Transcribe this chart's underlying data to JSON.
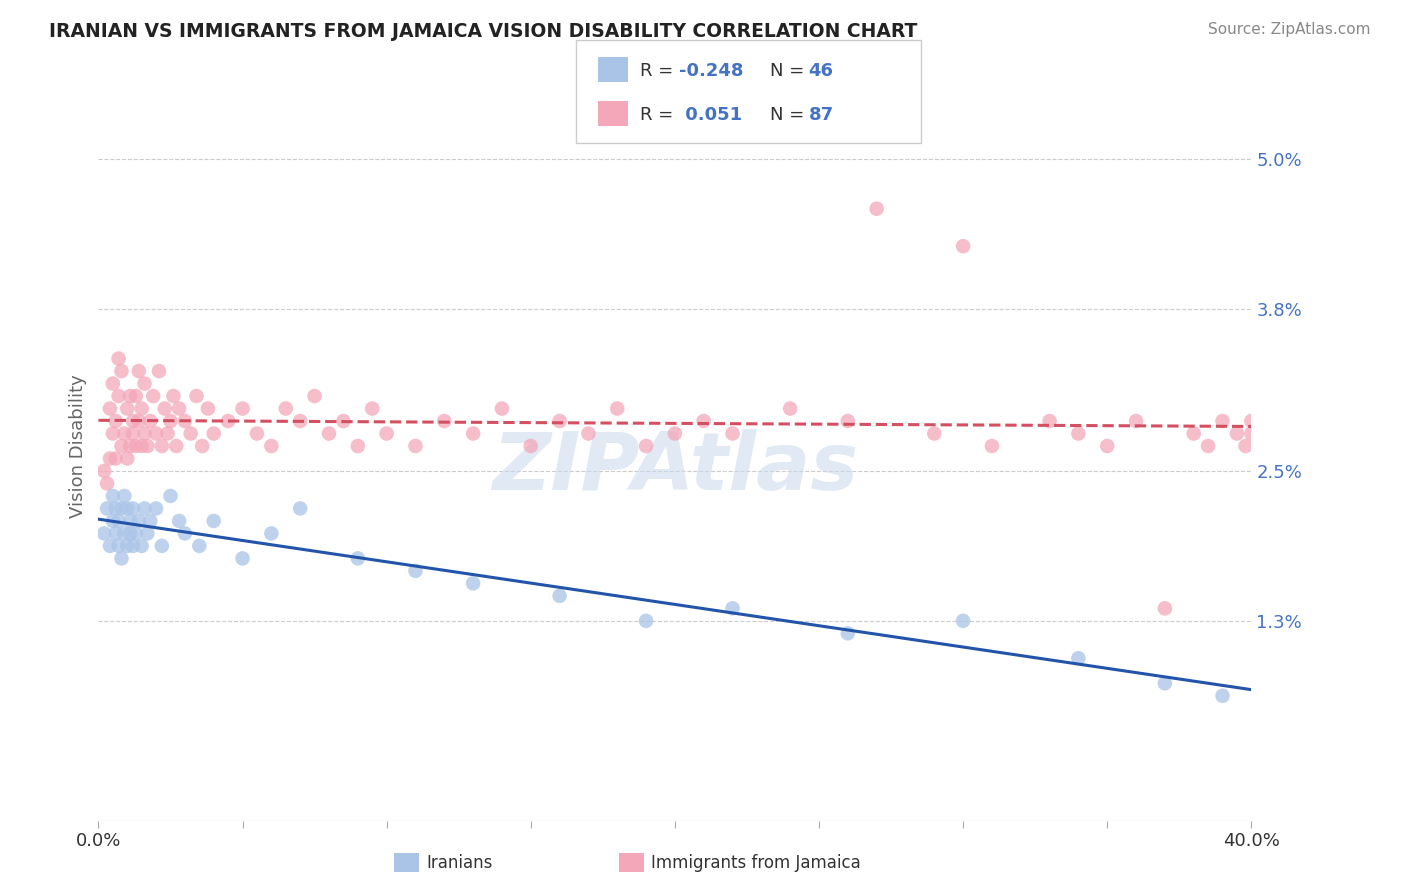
{
  "title": "IRANIAN VS IMMIGRANTS FROM JAMAICA VISION DISABILITY CORRELATION CHART",
  "source": "Source: ZipAtlas.com",
  "ylabel": "Vision Disability",
  "color_iranian": "#aac4e8",
  "color_jamaica": "#f4a7b9",
  "color_trendline_iranian": "#2255aa",
  "color_trendline_jamaica": "#d45060",
  "watermark": "ZIPAtlas",
  "xmin": 0.0,
  "xmax": 0.4,
  "ymin": -0.003,
  "ymax": 0.057,
  "ytick_vals": [
    0.013,
    0.025,
    0.038,
    0.05
  ],
  "ytick_labels": [
    "1.3%",
    "2.5%",
    "3.8%",
    "5.0%"
  ],
  "xtick_vals": [
    0.0,
    0.05,
    0.1,
    0.15,
    0.2,
    0.25,
    0.3,
    0.35,
    0.4
  ],
  "xtick_label_positions": [
    0.0,
    0.4
  ],
  "xtick_label_texts": [
    "0.0%",
    "40.0%"
  ],
  "legend_r1": "-0.248",
  "legend_n1": "46",
  "legend_r2": "0.051",
  "legend_n2": "87",
  "scatter_iranian_x": [
    0.002,
    0.003,
    0.004,
    0.005,
    0.005,
    0.006,
    0.006,
    0.007,
    0.007,
    0.008,
    0.008,
    0.009,
    0.009,
    0.01,
    0.01,
    0.011,
    0.011,
    0.012,
    0.012,
    0.013,
    0.014,
    0.015,
    0.016,
    0.017,
    0.018,
    0.02,
    0.022,
    0.025,
    0.028,
    0.03,
    0.035,
    0.04,
    0.05,
    0.06,
    0.07,
    0.09,
    0.11,
    0.13,
    0.16,
    0.19,
    0.22,
    0.26,
    0.3,
    0.34,
    0.37,
    0.39
  ],
  "scatter_iranian_y": [
    0.02,
    0.022,
    0.019,
    0.021,
    0.023,
    0.02,
    0.022,
    0.019,
    0.021,
    0.018,
    0.022,
    0.02,
    0.023,
    0.019,
    0.022,
    0.02,
    0.021,
    0.019,
    0.022,
    0.02,
    0.021,
    0.019,
    0.022,
    0.02,
    0.021,
    0.022,
    0.019,
    0.023,
    0.021,
    0.02,
    0.019,
    0.021,
    0.018,
    0.02,
    0.022,
    0.018,
    0.017,
    0.016,
    0.015,
    0.013,
    0.014,
    0.012,
    0.013,
    0.01,
    0.008,
    0.007
  ],
  "scatter_jamaica_x": [
    0.002,
    0.003,
    0.004,
    0.004,
    0.005,
    0.005,
    0.006,
    0.006,
    0.007,
    0.007,
    0.008,
    0.008,
    0.009,
    0.01,
    0.01,
    0.011,
    0.011,
    0.012,
    0.012,
    0.013,
    0.013,
    0.014,
    0.014,
    0.015,
    0.015,
    0.016,
    0.016,
    0.017,
    0.018,
    0.019,
    0.02,
    0.021,
    0.022,
    0.023,
    0.024,
    0.025,
    0.026,
    0.027,
    0.028,
    0.03,
    0.032,
    0.034,
    0.036,
    0.038,
    0.04,
    0.045,
    0.05,
    0.055,
    0.06,
    0.065,
    0.07,
    0.075,
    0.08,
    0.085,
    0.09,
    0.095,
    0.1,
    0.11,
    0.12,
    0.13,
    0.14,
    0.15,
    0.16,
    0.17,
    0.18,
    0.19,
    0.2,
    0.21,
    0.22,
    0.24,
    0.26,
    0.27,
    0.29,
    0.3,
    0.31,
    0.33,
    0.34,
    0.35,
    0.36,
    0.37,
    0.38,
    0.385,
    0.39,
    0.395,
    0.398,
    0.4,
    0.4
  ],
  "scatter_jamaica_y": [
    0.025,
    0.024,
    0.026,
    0.03,
    0.028,
    0.032,
    0.026,
    0.029,
    0.031,
    0.034,
    0.027,
    0.033,
    0.028,
    0.026,
    0.03,
    0.027,
    0.031,
    0.028,
    0.029,
    0.027,
    0.031,
    0.029,
    0.033,
    0.027,
    0.03,
    0.028,
    0.032,
    0.027,
    0.029,
    0.031,
    0.028,
    0.033,
    0.027,
    0.03,
    0.028,
    0.029,
    0.031,
    0.027,
    0.03,
    0.029,
    0.028,
    0.031,
    0.027,
    0.03,
    0.028,
    0.029,
    0.03,
    0.028,
    0.027,
    0.03,
    0.029,
    0.031,
    0.028,
    0.029,
    0.027,
    0.03,
    0.028,
    0.027,
    0.029,
    0.028,
    0.03,
    0.027,
    0.029,
    0.028,
    0.03,
    0.027,
    0.028,
    0.029,
    0.028,
    0.03,
    0.029,
    0.046,
    0.028,
    0.043,
    0.027,
    0.029,
    0.028,
    0.027,
    0.029,
    0.014,
    0.028,
    0.027,
    0.029,
    0.028,
    0.027,
    0.029,
    0.028
  ]
}
